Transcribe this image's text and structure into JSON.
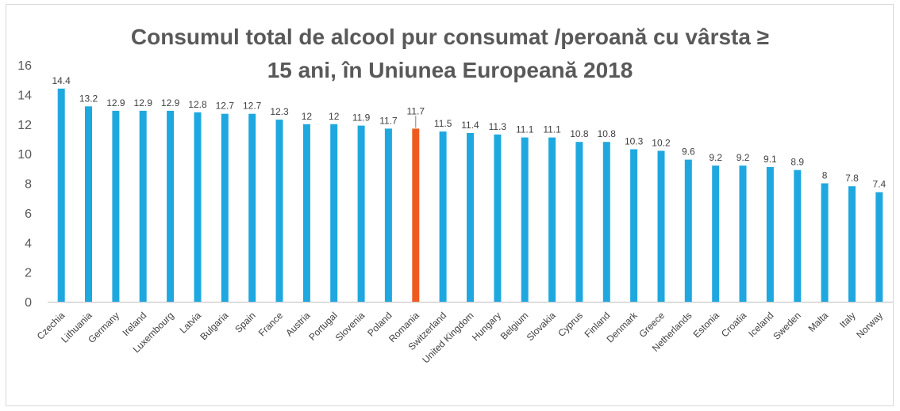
{
  "chart_data": {
    "type": "bar",
    "title": "Consumul total de alcool pur consumat /peroană cu vârsta ≥ 15 ani,  în Uniunea Europeană 2018",
    "title_lines": [
      "Consumul total de alcool pur consumat /peroană cu vârsta ≥",
      "15 ani,  în Uniunea Europeană 2018"
    ],
    "xlabel": "",
    "ylabel": "",
    "categories": [
      "Czechia",
      "Lithuania",
      "Germany",
      "Ireland",
      "Luxembourg",
      "Latvia",
      "Bulgaria",
      "Spain",
      "France",
      "Austria",
      "Portugal",
      "Slovenia",
      "Poland",
      "Romania",
      "Switzerland",
      "United Kingdom",
      "Hungary",
      "Belgium",
      "Slovakia",
      "Cyprus",
      "Finland",
      "Denmark",
      "Greece",
      "Netherlands",
      "Estonia",
      "Croatia",
      "Iceland",
      "Sweden",
      "Malta",
      "Italy",
      "Norway"
    ],
    "values": [
      14.4,
      13.2,
      12.9,
      12.9,
      12.9,
      12.8,
      12.7,
      12.7,
      12.3,
      12,
      12,
      11.9,
      11.7,
      11.7,
      11.5,
      11.4,
      11.3,
      11.1,
      11.1,
      10.8,
      10.8,
      10.3,
      10.2,
      9.6,
      9.2,
      9.2,
      9.1,
      8.9,
      8,
      7.8,
      7.4
    ],
    "value_labels": [
      "14.4",
      "13.2",
      "12.9",
      "12.9",
      "12.9",
      "12.8",
      "12.7",
      "12.7",
      "12.3",
      "12",
      "12",
      "11.9",
      "11.7",
      "11.7",
      "11.5",
      "11.4",
      "11.3",
      "11.1",
      "11.1",
      "10.8",
      "10.8",
      "10.3",
      "10.2",
      "9.6",
      "9.2",
      "9.2",
      "9.1",
      "8.9",
      "8",
      "7.8",
      "7.4"
    ],
    "yticks": [
      "0",
      "2",
      "4",
      "6",
      "8",
      "10",
      "12",
      "14",
      "16"
    ],
    "ylim": [
      0,
      16
    ],
    "grid": false,
    "legend": "none",
    "colors": {
      "bar": "#1fa8e0",
      "highlight": "#f05a22",
      "axis": "#bfbfbf"
    },
    "highlight_category": "Romania"
  }
}
